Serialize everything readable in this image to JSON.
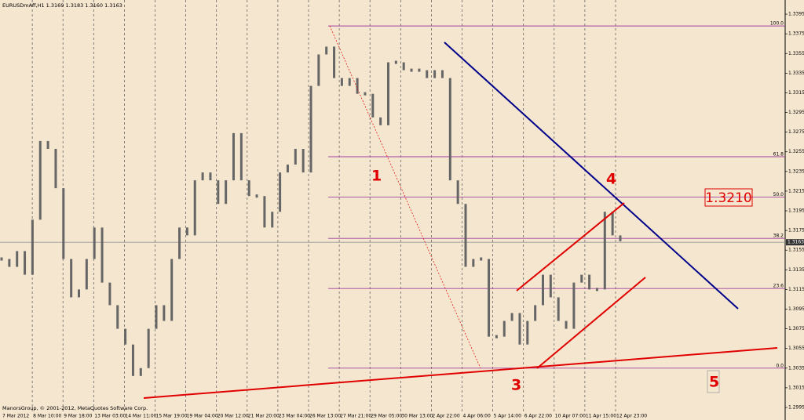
{
  "chart_data": {
    "type": "bar",
    "title": "EURUSDmAff,H1  1.3169 1.3183 1.3160 1.3163",
    "copyright": "ManorsGroup, © 2001-2012, MetaQuotes Software Corp.",
    "x_labels": [
      "7 Mar 2012",
      "8 Mar 10:00",
      "9 Mar 18:00",
      "13 Mar 03:00",
      "14 Mar 11:00",
      "15 Mar 19:00",
      "19 Mar 04:00",
      "20 Mar 12:00",
      "21 Mar 20:00",
      "23 Mar 04:00",
      "26 Mar 13:00",
      "27 Mar 21:00",
      "29 Mar 05:00",
      "30 Mar 13:00",
      "2 Apr 22:00",
      "4 Apr 06:00",
      "5 Apr 14:00",
      "6 Apr 22:00",
      "10 Apr 07:00",
      "11 Apr 15:00",
      "12 Apr 23:00"
    ],
    "series": [
      {
        "name": "EURUSD",
        "color": "#666666",
        "values": [
          1.3146,
          1.3138,
          1.3154,
          1.313,
          1.3186,
          1.3266,
          1.3258,
          1.3218,
          1.3146,
          1.3107,
          1.3115,
          1.3146,
          1.3178,
          1.3122,
          1.3099,
          1.3075,
          1.3059,
          1.3027,
          1.3035,
          1.3075,
          1.3099,
          1.3083,
          1.3146,
          1.3178,
          1.317,
          1.3226,
          1.3234,
          1.3226,
          1.3202,
          1.3226,
          1.3274,
          1.3226,
          1.321,
          1.321,
          1.3178,
          1.3194,
          1.3234,
          1.3242,
          1.3258,
          1.3234,
          1.3322,
          1.3354,
          1.3362,
          1.333,
          1.3322,
          1.333,
          1.3314,
          1.3314,
          1.329,
          1.3282,
          1.3346,
          1.3346,
          1.3338,
          1.3338,
          1.3338,
          1.333,
          1.3338,
          1.333,
          1.3226,
          1.3202,
          1.3138,
          1.3146,
          1.3146,
          1.3067,
          1.3067,
          1.3083,
          1.3091,
          1.3059,
          1.3083,
          1.3099,
          1.313,
          1.3107,
          1.3083,
          1.3075,
          1.3122,
          1.313,
          1.3115,
          1.3115,
          1.3194,
          1.317,
          1.3164
        ]
      }
    ],
    "ylim": [
      1.2991,
      1.3407
    ],
    "yticks": [
      1.2995,
      1.3015,
      1.3035,
      1.3055,
      1.3075,
      1.3095,
      1.3115,
      1.3135,
      1.3155,
      1.3175,
      1.3195,
      1.3215,
      1.3235,
      1.3255,
      1.3275,
      1.3295,
      1.3315,
      1.3335,
      1.3355,
      1.3375,
      1.3395
    ],
    "last_price": 1.3163,
    "fib_levels": [
      {
        "label": "100.0",
        "price": 1.3383
      },
      {
        "label": "61.8",
        "price": 1.325
      },
      {
        "label": "50.0",
        "price": 1.3209
      },
      {
        "label": "38.2",
        "price": 1.3167
      },
      {
        "label": "23.6",
        "price": 1.3116
      },
      {
        "label": "0.0",
        "price": 1.3035
      }
    ],
    "annotations": [
      "1",
      "3",
      "4",
      "5",
      "1.3210"
    ]
  }
}
